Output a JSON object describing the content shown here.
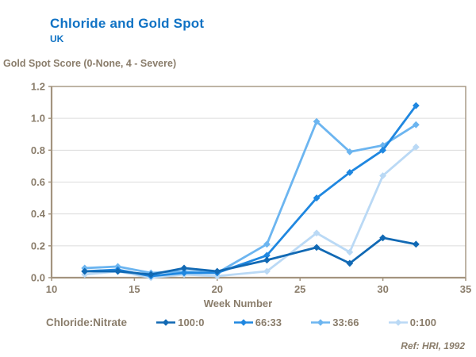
{
  "header": {
    "title": "Chloride and Gold Spot",
    "subtitle": "UK"
  },
  "footnote": "Ref: HRI, 1992",
  "colors": {
    "title_blue": "#0f72c4",
    "text_brown": "#8a7d6b",
    "axis": "#a3947f",
    "grid": "#dcdcdc",
    "series_100_0": "#1169b4",
    "series_66_33": "#1f87e0",
    "series_33_66": "#6cb5f0",
    "series_0_100": "#bad9f5"
  },
  "legend": {
    "title": "Chloride:Nitrate",
    "items": [
      {
        "label": "100:0",
        "color": "#1169b4"
      },
      {
        "label": "66:33",
        "color": "#1f87e0"
      },
      {
        "label": "33:66",
        "color": "#6cb5f0"
      },
      {
        "label": "0:100",
        "color": "#bad9f5"
      }
    ]
  },
  "chart_data": {
    "type": "line",
    "title": "Chloride and Gold Spot",
    "subtitle": "UK",
    "xlabel": "Week Number",
    "ylabel": "Gold Spot Score (0-None, 4 - Severe)",
    "xlim": [
      10,
      35
    ],
    "ylim": [
      0,
      1.2
    ],
    "xticks": [
      10,
      15,
      20,
      25,
      30,
      35
    ],
    "yticks": [
      0,
      0.2,
      0.4,
      0.6,
      0.8,
      1.0,
      1.2
    ],
    "grid": "horizontal",
    "legend_position": "bottom",
    "marker": "diamond",
    "x": [
      12,
      14,
      16,
      18,
      20,
      23,
      26,
      28,
      30,
      32
    ],
    "series": [
      {
        "name": "100:0",
        "color": "#1169b4",
        "values": [
          0.04,
          0.04,
          0.02,
          0.06,
          0.04,
          0.11,
          0.19,
          0.09,
          0.25,
          0.21
        ]
      },
      {
        "name": "66:33",
        "color": "#1f87e0",
        "values": [
          0.04,
          0.05,
          0.01,
          0.03,
          0.03,
          0.14,
          0.5,
          0.66,
          0.8,
          1.08
        ]
      },
      {
        "name": "33:66",
        "color": "#6cb5f0",
        "values": [
          0.06,
          0.07,
          0.03,
          0.04,
          0.03,
          0.21,
          0.98,
          0.79,
          0.83,
          0.96
        ]
      },
      {
        "name": "0:100",
        "color": "#bad9f5",
        "values": [
          0.02,
          0.04,
          0.0,
          0.02,
          0.01,
          0.04,
          0.28,
          0.16,
          0.64,
          0.82
        ]
      }
    ]
  }
}
